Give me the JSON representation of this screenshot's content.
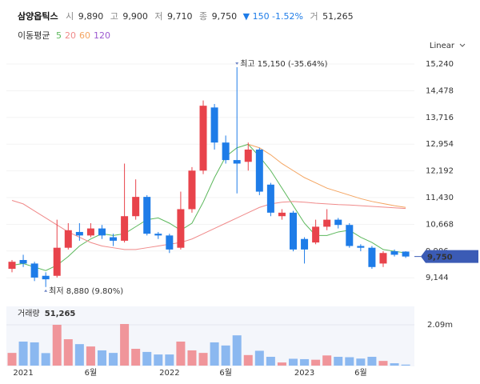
{
  "chart_data": {
    "type": "candlestick",
    "title": "삼양옵틱스",
    "header_stats": [
      {
        "label": "시",
        "value": "9,890"
      },
      {
        "label": "고",
        "value": "9,900"
      },
      {
        "label": "저",
        "value": "9,710"
      },
      {
        "label": "종",
        "value": "9,750"
      }
    ],
    "change": "▼ 150 -1.52%",
    "volume_stat": {
      "label": "거",
      "value": "51,265"
    },
    "ma_label": "이동평균",
    "scale_label": "Linear",
    "categories": [
      null,
      "2021",
      null,
      null,
      null,
      null,
      null,
      "6월",
      null,
      null,
      null,
      null,
      null,
      null,
      "2022",
      null,
      null,
      null,
      null,
      "6월",
      null,
      null,
      null,
      null,
      null,
      null,
      "2023",
      null,
      null,
      null,
      null,
      "6월",
      null,
      null,
      null,
      null
    ],
    "candles": [
      {
        "open": 9400,
        "high": 9650,
        "low": 9300,
        "close": 9600
      },
      {
        "open": 9650,
        "high": 9800,
        "low": 9450,
        "close": 9550
      },
      {
        "open": 9550,
        "high": 9600,
        "low": 9050,
        "close": 9150
      },
      {
        "open": 9200,
        "high": 9300,
        "low": 8880,
        "close": 9100
      },
      {
        "open": 9200,
        "high": 10800,
        "low": 9150,
        "close": 10000
      },
      {
        "open": 10000,
        "high": 10700,
        "low": 9950,
        "close": 10500
      },
      {
        "open": 10450,
        "high": 10700,
        "low": 10200,
        "close": 10350
      },
      {
        "open": 10350,
        "high": 10700,
        "low": 10300,
        "close": 10550
      },
      {
        "open": 10550,
        "high": 10650,
        "low": 10250,
        "close": 10350
      },
      {
        "open": 10300,
        "high": 10400,
        "low": 10050,
        "close": 10200
      },
      {
        "open": 10200,
        "high": 12400,
        "low": 10150,
        "close": 10900
      },
      {
        "open": 10900,
        "high": 11950,
        "low": 10800,
        "close": 11450
      },
      {
        "open": 11450,
        "high": 11500,
        "low": 10350,
        "close": 10400
      },
      {
        "open": 10400,
        "high": 10450,
        "low": 10250,
        "close": 10350
      },
      {
        "open": 10350,
        "high": 10400,
        "low": 9850,
        "close": 9950
      },
      {
        "open": 10000,
        "high": 11600,
        "low": 9950,
        "close": 11100
      },
      {
        "open": 11100,
        "high": 12300,
        "low": 11000,
        "close": 12200
      },
      {
        "open": 12200,
        "high": 14200,
        "low": 12100,
        "close": 14050
      },
      {
        "open": 14000,
        "high": 14100,
        "low": 12800,
        "close": 13000
      },
      {
        "open": 13000,
        "high": 13200,
        "low": 12400,
        "close": 12500
      },
      {
        "open": 12500,
        "high": 15150,
        "low": 11550,
        "close": 12400
      },
      {
        "open": 12450,
        "high": 13000,
        "low": 12200,
        "close": 12800
      },
      {
        "open": 12800,
        "high": 12850,
        "low": 11500,
        "close": 11600
      },
      {
        "open": 11800,
        "high": 11850,
        "low": 10900,
        "close": 11000
      },
      {
        "open": 10900,
        "high": 11100,
        "low": 10800,
        "close": 11000
      },
      {
        "open": 11000,
        "high": 11050,
        "low": 9900,
        "close": 9950
      },
      {
        "open": 10250,
        "high": 10300,
        "low": 9550,
        "close": 9950
      },
      {
        "open": 10150,
        "high": 10800,
        "low": 10100,
        "close": 10600
      },
      {
        "open": 10600,
        "high": 11100,
        "low": 10500,
        "close": 10800
      },
      {
        "open": 10800,
        "high": 10850,
        "low": 10550,
        "close": 10650
      },
      {
        "open": 10650,
        "high": 10700,
        "low": 10000,
        "close": 10050
      },
      {
        "open": 10050,
        "high": 10100,
        "low": 9900,
        "close": 10000
      },
      {
        "open": 10000,
        "high": 10050,
        "low": 9400,
        "close": 9450
      },
      {
        "open": 9550,
        "high": 9900,
        "low": 9450,
        "close": 9850
      },
      {
        "open": 9900,
        "high": 9950,
        "low": 9750,
        "close": 9800
      },
      {
        "open": 9890,
        "high": 9900,
        "low": 9710,
        "close": 9750
      }
    ],
    "up_color": "#e8434b",
    "down_color": "#1e7ce8",
    "series": [
      {
        "name": "5",
        "color": "#5cb85c",
        "values": [
          9500,
          9550,
          9450,
          9350,
          9500,
          9750,
          10050,
          10250,
          10400,
          10350,
          10400,
          10600,
          10800,
          10850,
          10700,
          10500,
          10700,
          11300,
          12000,
          12600,
          12850,
          12950,
          12600,
          12200,
          11700,
          11200,
          10700,
          10350,
          10350,
          10450,
          10500,
          10300,
          10150,
          9950,
          9900,
          9850
        ]
      },
      {
        "name": "20",
        "color": "#f08a8a",
        "values": [
          11350,
          11250,
          11050,
          10850,
          10650,
          10450,
          10300,
          10150,
          10050,
          10000,
          9950,
          9950,
          10000,
          10050,
          10100,
          10150,
          10250,
          10400,
          10550,
          10700,
          10850,
          11000,
          11150,
          11250,
          11300,
          11320,
          11300,
          11270,
          11250,
          11230,
          11220,
          11200,
          11180,
          11160,
          11140,
          11120
        ]
      },
      {
        "name": "60",
        "color": "#f4a460",
        "values": [
          null,
          null,
          null,
          null,
          null,
          null,
          null,
          null,
          null,
          null,
          null,
          null,
          null,
          null,
          null,
          null,
          null,
          null,
          null,
          null,
          null,
          12950,
          12850,
          12650,
          12400,
          12200,
          12000,
          11850,
          11700,
          11600,
          11500,
          11400,
          11320,
          11260,
          11200,
          11150
        ]
      },
      {
        "name": "120",
        "color": "#9b59d0",
        "values": [
          null,
          null,
          null,
          null,
          null,
          null,
          null,
          null,
          null,
          null,
          null,
          null,
          null,
          null,
          null,
          null,
          null,
          null,
          null,
          null,
          null,
          null,
          null,
          null,
          null,
          null,
          null,
          null,
          null,
          null,
          null,
          null,
          null,
          null,
          null,
          null
        ]
      }
    ],
    "ylim": [
      8738,
      15468
    ],
    "yticks": [
      {
        "value": 9144,
        "label": "9,144"
      },
      {
        "value": 9906,
        "label": "9,906"
      },
      {
        "value": 10668,
        "label": "10,668"
      },
      {
        "value": 11430,
        "label": "11,430"
      },
      {
        "value": 12192,
        "label": "12,192"
      },
      {
        "value": 12954,
        "label": "12,954"
      },
      {
        "value": 13716,
        "label": "13,716"
      },
      {
        "value": 14478,
        "label": "14,478"
      },
      {
        "value": 15240,
        "label": "15,240"
      }
    ],
    "last_price": {
      "value": 9750,
      "label": "9,750"
    },
    "high_annotation": {
      "value": 15150,
      "index": 20,
      "text": "최고 15,150 (-35.64%)"
    },
    "low_annotation": {
      "value": 8880,
      "index": 3,
      "text": "최저 8,880 (9.80%)"
    },
    "volume": {
      "label": "거래량",
      "current": "51,265",
      "values": [
        650000,
        1230000,
        1190000,
        640000,
        2090000,
        1350000,
        1100000,
        980000,
        780000,
        650000,
        2130000,
        860000,
        700000,
        570000,
        570000,
        1230000,
        780000,
        650000,
        1190000,
        1030000,
        1550000,
        540000,
        760000,
        450000,
        160000,
        350000,
        330000,
        300000,
        520000,
        450000,
        430000,
        360000,
        450000,
        240000,
        120000,
        51265
      ],
      "ylim": [
        0,
        2950000
      ],
      "yticks": [
        {
          "value": 2090000,
          "label": "2.09m"
        }
      ]
    }
  }
}
